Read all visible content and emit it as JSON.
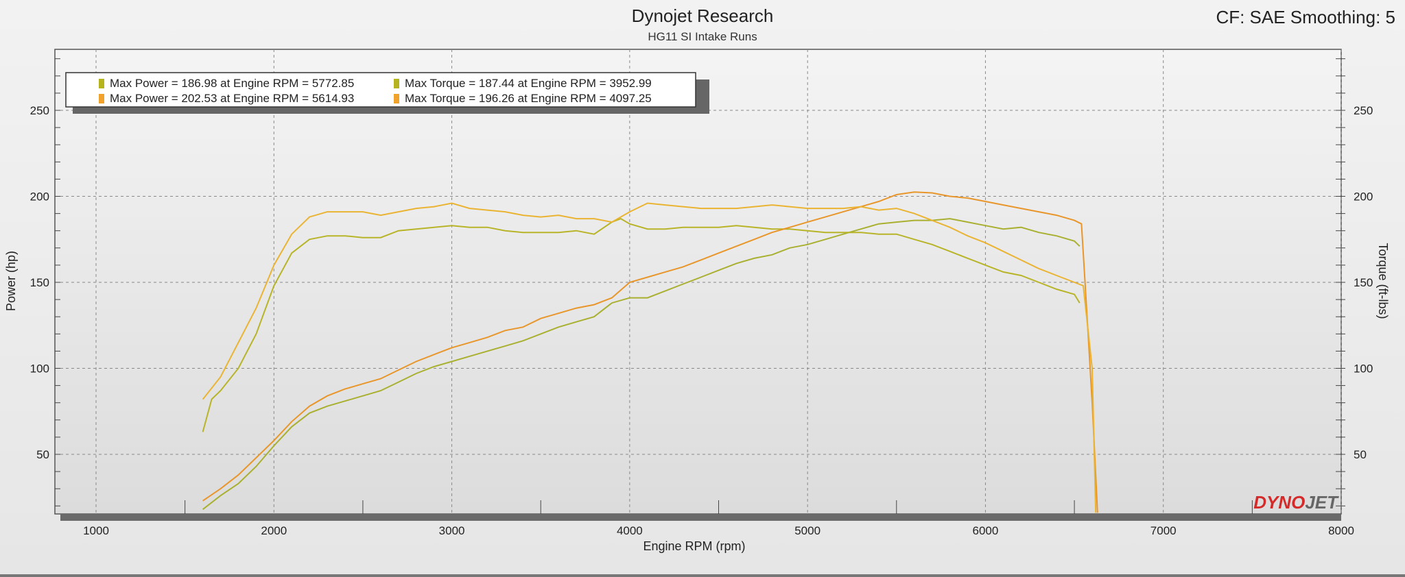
{
  "header": {
    "title": "Dynojet Research",
    "subtitle": "HG11 SI Intake Runs",
    "settings": "CF: SAE Smoothing: 5"
  },
  "logo": {
    "text_red": "DYNO",
    "text_gray": "JET"
  },
  "chart_data": {
    "type": "line",
    "title": "Dynojet Research",
    "subtitle": "HG11 SI Intake Runs",
    "xlabel": "Engine RPM (rpm)",
    "ylabel": "Power (hp)",
    "y2label": "Torque (ft-lbs)",
    "xlim": [
      800,
      8000
    ],
    "ylim": [
      16,
      285
    ],
    "xticks": [
      1000,
      2000,
      3000,
      4000,
      5000,
      6000,
      7000,
      8000
    ],
    "yticks": [
      50,
      100,
      150,
      200,
      250
    ],
    "grid": true,
    "legend_placement": "top-left",
    "legend": [
      [
        "Max Power = 186.98 at Engine RPM = 5772.85",
        "Max Torque = 187.44 at Engine RPM = 3952.99"
      ],
      [
        "Max Power = 202.53 at Engine RPM = 5614.93",
        "Max Torque = 196.26 at Engine RPM = 4097.25"
      ]
    ],
    "legend_colors": [
      "#b5b41e",
      "#f0a22c"
    ],
    "series": [
      {
        "color": "#a9b030",
        "axis": "left",
        "x": [
          1600,
          1700,
          1800,
          1900,
          2000,
          2100,
          2200,
          2300,
          2400,
          2500,
          2600,
          2700,
          2800,
          2900,
          3000,
          3100,
          3200,
          3300,
          3400,
          3500,
          3600,
          3700,
          3800,
          3900,
          4000,
          4100,
          4200,
          4300,
          4400,
          4500,
          4600,
          4700,
          4800,
          4900,
          5000,
          5100,
          5200,
          5300,
          5400,
          5500,
          5600,
          5700,
          5800,
          5900,
          6000,
          6100,
          6200,
          6300,
          6400,
          6500,
          6530
        ],
        "values": [
          18,
          26,
          33,
          43,
          55,
          66,
          74,
          78,
          81,
          84,
          87,
          92,
          97,
          101,
          104,
          107,
          110,
          113,
          116,
          120,
          124,
          127,
          130,
          138,
          141,
          141,
          145,
          149,
          153,
          157,
          161,
          164,
          166,
          170,
          172,
          175,
          178,
          181,
          184,
          185,
          186,
          186,
          187,
          185,
          183,
          181,
          182,
          179,
          177,
          174,
          171
        ]
      },
      {
        "color": "#b8b428",
        "axis": "right",
        "x": [
          1600,
          1650,
          1700,
          1800,
          1900,
          2000,
          2100,
          2200,
          2300,
          2400,
          2500,
          2600,
          2700,
          2800,
          2900,
          3000,
          3100,
          3200,
          3300,
          3400,
          3500,
          3600,
          3700,
          3800,
          3900,
          3950,
          4000,
          4100,
          4200,
          4300,
          4400,
          4500,
          4600,
          4700,
          4800,
          4900,
          5000,
          5100,
          5200,
          5300,
          5400,
          5500,
          5600,
          5700,
          5800,
          5900,
          6000,
          6100,
          6200,
          6300,
          6400,
          6500,
          6530
        ],
        "values": [
          63,
          82,
          87,
          100,
          120,
          148,
          167,
          175,
          177,
          177,
          176,
          176,
          180,
          181,
          182,
          183,
          182,
          182,
          180,
          179,
          179,
          179,
          180,
          178,
          185,
          187,
          184,
          181,
          181,
          182,
          182,
          182,
          183,
          182,
          181,
          181,
          180,
          179,
          179,
          179,
          178,
          178,
          175,
          172,
          168,
          164,
          160,
          156,
          154,
          150,
          146,
          143,
          138
        ]
      },
      {
        "color": "#e8962a",
        "axis": "left",
        "x": [
          1600,
          1700,
          1800,
          1900,
          2000,
          2100,
          2200,
          2300,
          2400,
          2500,
          2600,
          2700,
          2800,
          2900,
          3000,
          3100,
          3200,
          3300,
          3400,
          3500,
          3600,
          3700,
          3800,
          3900,
          4000,
          4100,
          4200,
          4300,
          4400,
          4500,
          4600,
          4700,
          4800,
          4900,
          5000,
          5100,
          5200,
          5300,
          5400,
          5500,
          5600,
          5700,
          5800,
          5900,
          6000,
          6100,
          6200,
          6300,
          6400,
          6500,
          6540,
          6560,
          6600,
          6630
        ],
        "values": [
          23,
          30,
          38,
          48,
          58,
          69,
          78,
          84,
          88,
          91,
          94,
          99,
          104,
          108,
          112,
          115,
          118,
          122,
          124,
          129,
          132,
          135,
          137,
          141,
          150,
          153,
          156,
          159,
          163,
          167,
          171,
          175,
          179,
          182,
          185,
          188,
          191,
          194,
          197,
          201,
          202.5,
          202,
          200,
          199,
          197,
          195,
          193,
          191,
          189,
          186,
          184,
          150,
          80,
          16
        ]
      },
      {
        "color": "#eab432",
        "axis": "right",
        "x": [
          1600,
          1700,
          1800,
          1900,
          2000,
          2100,
          2200,
          2300,
          2400,
          2500,
          2600,
          2700,
          2800,
          2900,
          3000,
          3100,
          3200,
          3300,
          3400,
          3500,
          3600,
          3700,
          3800,
          3900,
          4000,
          4100,
          4200,
          4300,
          4400,
          4500,
          4600,
          4700,
          4800,
          4900,
          5000,
          5100,
          5200,
          5300,
          5400,
          5500,
          5600,
          5700,
          5800,
          5900,
          6000,
          6100,
          6200,
          6300,
          6400,
          6500,
          6550,
          6600,
          6620
        ],
        "values": [
          82,
          95,
          115,
          135,
          160,
          178,
          188,
          191,
          191,
          191,
          189,
          191,
          193,
          194,
          196,
          193,
          192,
          191,
          189,
          188,
          189,
          187,
          187,
          185,
          191,
          196,
          195,
          194,
          193,
          193,
          193,
          194,
          195,
          194,
          193,
          193,
          193,
          194,
          192,
          193,
          190,
          186,
          182,
          177,
          173,
          168,
          163,
          158,
          154,
          150,
          148,
          100,
          16
        ]
      }
    ]
  }
}
